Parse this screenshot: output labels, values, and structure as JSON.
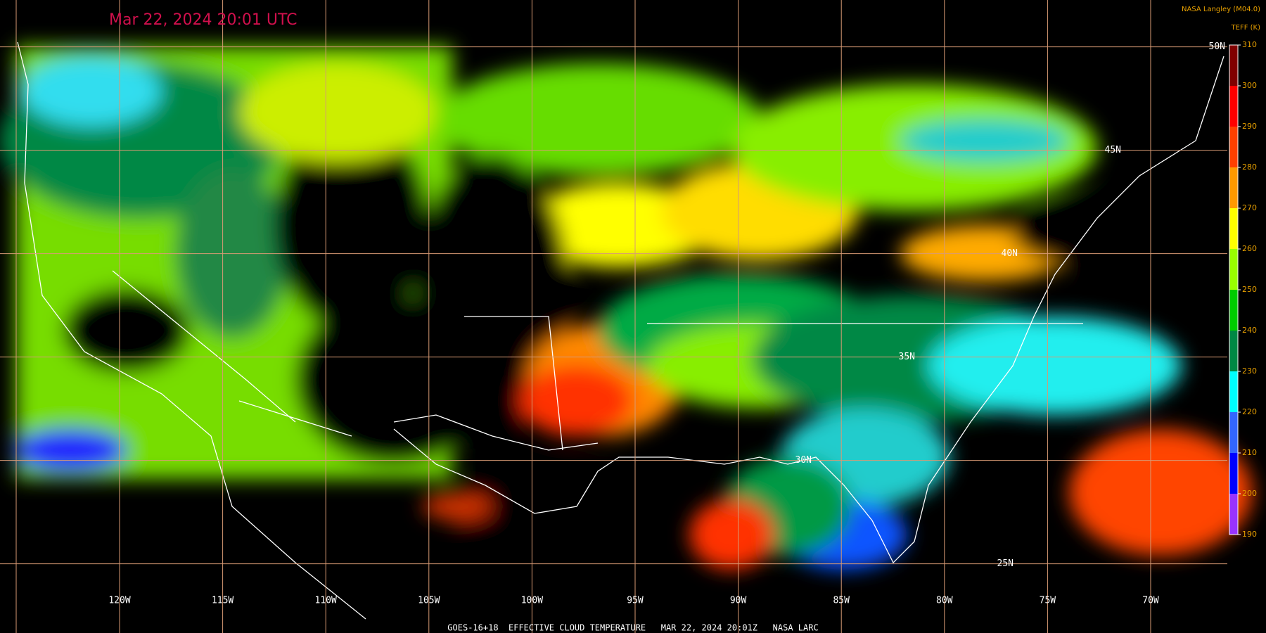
{
  "header": {
    "title": "Mar 22, 2024 20:01 UTC",
    "source": "NASA Langley (M04.0)"
  },
  "colorbar": {
    "title": "TEFF (K)",
    "ticks": [
      310,
      300,
      290,
      280,
      270,
      260,
      250,
      240,
      230,
      220,
      210,
      200,
      190
    ],
    "colors": [
      "#800000",
      "#ff0000",
      "#ff4000",
      "#ff9900",
      "#ffff00",
      "#99ff00",
      "#00cc00",
      "#008844",
      "#00ffff",
      "#3366ff",
      "#0000ff",
      "#9933ff"
    ]
  },
  "grid": {
    "longitudes": [
      "120W",
      "115W",
      "110W",
      "105W",
      "100W",
      "95W",
      "90W",
      "85W",
      "80W",
      "75W",
      "70W"
    ],
    "latitudes": [
      "50N",
      "45N",
      "40N",
      "35N",
      "30N",
      "25N"
    ]
  },
  "footer": "GOES-16+18  EFFECTIVE CLOUD TEMPERATURE   MAR 22, 2024 20:01Z   NASA LARC"
}
